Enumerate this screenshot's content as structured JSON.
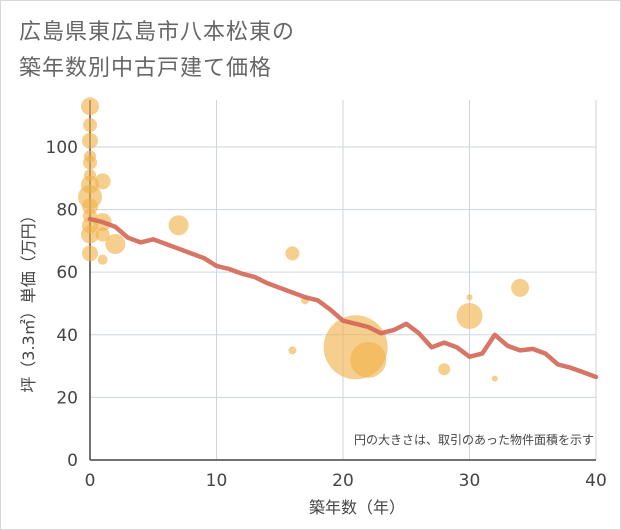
{
  "chart_data": {
    "type": "scatter",
    "title_line1": "広島県東広島市八本松東の",
    "title_line2": "築年数別中古戸建て価格",
    "xlabel": "築年数（年）",
    "ylabel": "坪（3.3㎡）単価（万円）",
    "xlim": [
      0,
      40
    ],
    "ylim": [
      0,
      115
    ],
    "x_ticks": [
      0,
      10,
      20,
      30,
      40
    ],
    "y_ticks": [
      0,
      20,
      40,
      60,
      80,
      100
    ],
    "note": "円の大きさは、取引のあった物件面積を示す",
    "grid": true,
    "colors": {
      "bubble": "#f0b24b",
      "trend": "#d4695a",
      "grid": "#ccd6e0",
      "axis": "#444444"
    },
    "series": [
      {
        "name": "transactions",
        "points": [
          {
            "x": 0,
            "y": 113,
            "size": 9
          },
          {
            "x": 0,
            "y": 107,
            "size": 7
          },
          {
            "x": 0,
            "y": 102,
            "size": 8
          },
          {
            "x": 0,
            "y": 97,
            "size": 6
          },
          {
            "x": 0,
            "y": 95,
            "size": 7
          },
          {
            "x": 0,
            "y": 91,
            "size": 6
          },
          {
            "x": 0,
            "y": 88,
            "size": 9
          },
          {
            "x": 0,
            "y": 84,
            "size": 12
          },
          {
            "x": 0,
            "y": 81,
            "size": 8
          },
          {
            "x": 0,
            "y": 78,
            "size": 7
          },
          {
            "x": 0,
            "y": 75,
            "size": 8
          },
          {
            "x": 0,
            "y": 72,
            "size": 9
          },
          {
            "x": 0,
            "y": 66,
            "size": 8
          },
          {
            "x": 1,
            "y": 89,
            "size": 8
          },
          {
            "x": 1,
            "y": 76,
            "size": 9
          },
          {
            "x": 1,
            "y": 72,
            "size": 7
          },
          {
            "x": 1,
            "y": 64,
            "size": 5
          },
          {
            "x": 2,
            "y": 69,
            "size": 10
          },
          {
            "x": 7,
            "y": 75,
            "size": 10
          },
          {
            "x": 16,
            "y": 66,
            "size": 7
          },
          {
            "x": 16,
            "y": 35,
            "size": 4
          },
          {
            "x": 17,
            "y": 51,
            "size": 4
          },
          {
            "x": 21,
            "y": 36,
            "size": 32
          },
          {
            "x": 22,
            "y": 32,
            "size": 18
          },
          {
            "x": 28,
            "y": 29,
            "size": 6
          },
          {
            "x": 30,
            "y": 52,
            "size": 3
          },
          {
            "x": 30,
            "y": 46,
            "size": 13
          },
          {
            "x": 32,
            "y": 26,
            "size": 3
          },
          {
            "x": 34,
            "y": 55,
            "size": 9
          }
        ]
      },
      {
        "name": "trend",
        "x": [
          0,
          1,
          2,
          3,
          4,
          5,
          6,
          7,
          8,
          9,
          10,
          11,
          12,
          13,
          14,
          15,
          16,
          17,
          18,
          19,
          20,
          21,
          22,
          23,
          24,
          25,
          26,
          27,
          28,
          29,
          30,
          31,
          32,
          33,
          34,
          35,
          36,
          37,
          38,
          39,
          40
        ],
        "y": [
          77,
          76,
          74.5,
          71,
          69.5,
          70.5,
          69,
          67.5,
          66,
          64.5,
          62,
          61,
          59.5,
          58.5,
          56.5,
          55,
          53.5,
          52,
          51,
          48,
          44.5,
          43.5,
          42.5,
          40.5,
          41.5,
          43.5,
          40.5,
          36,
          37.5,
          36,
          33,
          34,
          40,
          36.5,
          35,
          35.5,
          34,
          30.5,
          29.5,
          28,
          26.5
        ]
      }
    ]
  }
}
